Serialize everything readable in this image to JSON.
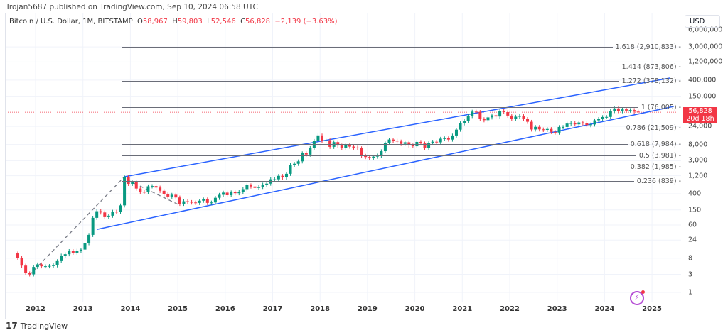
{
  "header": {
    "published": "Trojan5687 published on TradingView.com, Sep 10, 2024 06:58 UTC"
  },
  "legend": {
    "symbol": "Bitcoin / U.S. Dollar, 1M, BITSTAMP",
    "open_label": "O",
    "open": "58,967",
    "high_label": "H",
    "high": "59,803",
    "low_label": "L",
    "low": "52,546",
    "close_label": "C",
    "close": "56,828",
    "change": "−2,139 (−3.63%)"
  },
  "currency_button": "USD",
  "price_label": {
    "price": "56,828",
    "countdown": "20d 18h"
  },
  "footer": {
    "brand": "TradingView"
  },
  "colors": {
    "up": "#089981",
    "down": "#f23645",
    "channel": "#2962ff",
    "fib": "#6a6d78"
  },
  "chart_data": {
    "type": "candlestick",
    "scale": "log",
    "grid": true,
    "start_month": "2011-08",
    "first_open": 10.7,
    "closes": [
      8.2,
      5.1,
      3.2,
      3.0,
      4.7,
      5.5,
      4.9,
      4.9,
      5.0,
      5.2,
      6.7,
      9.4,
      10.2,
      12.4,
      11.2,
      12.6,
      13.5,
      20,
      33,
      93,
      139,
      129,
      97,
      106,
      135,
      133,
      198,
      1130,
      732,
      800,
      550,
      450,
      446,
      630,
      640,
      585,
      480,
      387,
      338,
      378,
      320,
      218,
      254,
      244,
      236,
      230,
      263,
      285,
      230,
      236,
      314,
      377,
      430,
      368,
      437,
      416,
      448,
      531,
      673,
      624,
      573,
      609,
      700,
      742,
      964,
      965,
      1190,
      1080,
      1348,
      2300,
      2480,
      2875,
      4700,
      4340,
      6450,
      9950,
      13860,
      10100,
      10300,
      6930,
      9240,
      7500,
      6390,
      7730,
      7030,
      6630,
      6370,
      4040,
      3740,
      3460,
      3830,
      4100,
      5320,
      8560,
      10800,
      10080,
      9600,
      8300,
      9150,
      7560,
      7190,
      9350,
      8540,
      6410,
      8630,
      9450,
      9140,
      11350,
      11650,
      10780,
      13800,
      19700,
      28990,
      33100,
      45200,
      58800,
      57700,
      37300,
      35000,
      41500,
      47100,
      43800,
      61300,
      57000,
      46200,
      38500,
      43200,
      45500,
      37700,
      31800,
      19900,
      23300,
      20050,
      19430,
      20500,
      17170,
      16540,
      23130,
      23140,
      28470,
      29250,
      27220,
      30470,
      29230,
      25940,
      26970,
      34650,
      37720,
      42280,
      42580,
      61130,
      71300,
      60640,
      67490,
      62750,
      64620,
      58967,
      56828
    ],
    "x_ticks": [
      "2012",
      "2013",
      "2014",
      "2015",
      "2016",
      "2017",
      "2018",
      "2019",
      "2020",
      "2021",
      "2022",
      "2023",
      "2024",
      "2025"
    ],
    "y_ticks": [
      "6,000,000",
      "3,000,000",
      "1,200,000",
      "400,000",
      "150,000",
      "24,000",
      "8,000",
      "3,000",
      "1,200",
      "400",
      "150",
      "60",
      "24",
      "8",
      "3",
      "1"
    ],
    "y_tick_values": [
      6000000,
      3000000,
      1200000,
      400000,
      150000,
      24000,
      8000,
      3000,
      1200,
      400,
      150,
      60,
      24,
      8,
      3,
      1
    ],
    "fib_levels": [
      {
        "label": "1.618 (2,910,833) -",
        "price": 2910833
      },
      {
        "label": "1.414 (873,806) -",
        "price": 873806
      },
      {
        "label": "1.272 (378,132) -",
        "price": 378132
      },
      {
        "label": "1 (76,005) -",
        "price": 76005
      },
      {
        "label": "0.786 (21,509) -",
        "price": 21509
      },
      {
        "label": "0.618 (7,984) -",
        "price": 7984
      },
      {
        "label": "0.5 (3,981) -",
        "price": 3981
      },
      {
        "label": "0.382 (1,985) -",
        "price": 1985
      },
      {
        "label": "0.236 (839) -",
        "price": 839
      }
    ],
    "channel": {
      "upper": [
        [
          "2013-11",
          1130
        ],
        [
          "2025-05",
          452000
        ]
      ],
      "lower": [
        [
          "2013-04",
          46
        ],
        [
          "2025-06",
          80500
        ]
      ]
    },
    "dashed": [
      [
        [
          "2011-11",
          2.9
        ],
        [
          "2013-11",
          1130
        ]
      ],
      [
        [
          "2013-12",
          900
        ],
        [
          "2015-01",
          200
        ]
      ]
    ],
    "last_price": 56828
  }
}
